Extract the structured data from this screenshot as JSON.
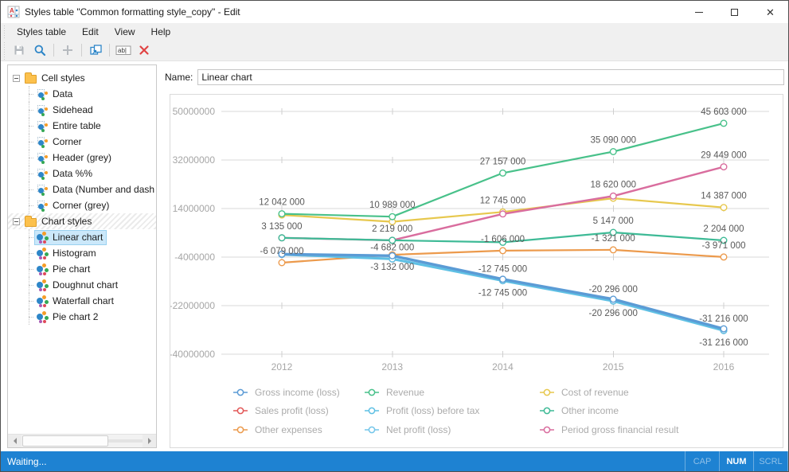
{
  "window": {
    "title": "Styles table \"Common formatting style_copy\" - Edit",
    "controls": [
      {
        "name": "minimize",
        "icon": "minimize-icon"
      },
      {
        "name": "maximize",
        "icon": "maximize-icon"
      },
      {
        "name": "close",
        "icon": "close-icon"
      }
    ]
  },
  "menu": {
    "items": [
      "Styles table",
      "Edit",
      "View",
      "Help"
    ]
  },
  "toolbar": {
    "buttons": [
      {
        "name": "save",
        "icon": "floppy-icon",
        "enabled": false
      },
      {
        "name": "preview",
        "icon": "magnifier-icon",
        "enabled": true
      },
      {
        "name": "add",
        "icon": "plus-icon",
        "enabled": false
      },
      {
        "name": "duplicate",
        "icon": "copy-icon",
        "enabled": true
      },
      {
        "name": "rename",
        "icon": "rename-icon",
        "enabled": true
      },
      {
        "name": "delete",
        "icon": "delete-x-icon",
        "enabled": true
      }
    ],
    "rename_glyph": "ab|"
  },
  "tree": {
    "groups": [
      {
        "label": "Cell styles",
        "icon": "folder-icon",
        "hatched": false,
        "items": [
          {
            "label": "Data",
            "selected": false
          },
          {
            "label": "Sidehead",
            "selected": false
          },
          {
            "label": "Entire table",
            "selected": false
          },
          {
            "label": "Corner",
            "selected": false
          },
          {
            "label": "Header (grey)",
            "selected": false
          },
          {
            "label": "Data %%",
            "selected": false
          },
          {
            "label": "Data (Number and dash",
            "selected": false
          },
          {
            "label": "Corner (grey)",
            "selected": false
          }
        ]
      },
      {
        "label": "Chart styles",
        "icon": "folder-icon",
        "hatched": true,
        "items": [
          {
            "label": "Linear chart",
            "selected": true
          },
          {
            "label": "Histogram",
            "selected": false
          },
          {
            "label": "Pie chart",
            "selected": false
          },
          {
            "label": "Doughnut chart",
            "selected": false
          },
          {
            "label": "Waterfall chart",
            "selected": false
          },
          {
            "label": "Pie chart 2",
            "selected": false
          }
        ]
      }
    ]
  },
  "name_field": {
    "label": "Name:",
    "value": "Linear chart"
  },
  "chart_data": {
    "type": "line",
    "x": [
      2012,
      2013,
      2014,
      2015,
      2016
    ],
    "x_labels": [
      "2012",
      "2013",
      "2014",
      "2015",
      "2016"
    ],
    "y_ticks": [
      50000000,
      32000000,
      14000000,
      -4000000,
      -22000000,
      -40000000
    ],
    "y_tick_labels": [
      "50000000",
      "32000000",
      "14000000",
      "-4000000",
      "-22000000",
      "-40000000"
    ],
    "ylim": [
      -40000000,
      50000000
    ],
    "grid": true,
    "legend_position": "bottom",
    "series": [
      {
        "name": "Sales profit (loss)",
        "color": "#e25757",
        "width": 2.2,
        "values": [
          -3000000,
          -4682000,
          -12745000,
          -20296000,
          -31216000
        ]
      },
      {
        "name": "Cost of revenue",
        "color": "#e7c84e",
        "width": 2.2,
        "values": [
          11600000,
          9100000,
          12745000,
          17800000,
          14387000
        ]
      },
      {
        "name": "Period gross financial result",
        "color": "#d96d9e",
        "width": 2.4,
        "values": [
          3135000,
          2219000,
          12000000,
          18620000,
          29449000
        ]
      },
      {
        "name": "Other income",
        "color": "#3eba96",
        "width": 2.2,
        "values": [
          3135000,
          2219000,
          1500000,
          5147000,
          2204000
        ]
      },
      {
        "name": "Other expenses",
        "color": "#ec9a4c",
        "width": 2.2,
        "values": [
          -6079000,
          -3132000,
          -1606000,
          -1321000,
          -3971000
        ]
      },
      {
        "name": "Revenue",
        "color": "#48c18a",
        "width": 2.2,
        "values": [
          12042000,
          10989000,
          27157000,
          35090000,
          45603000
        ]
      },
      {
        "name": "Net profit (loss)",
        "color": "#74c6ea",
        "width": 2.4,
        "values": [
          -3000000,
          -4682000,
          -12745000,
          -20296000,
          -31216000
        ]
      },
      {
        "name": "Profit (loss) before tax",
        "color": "#5fc0e4",
        "width": 3.2,
        "values": [
          -3000000,
          -4682000,
          -12745000,
          -20296000,
          -31216000
        ]
      },
      {
        "name": "Gross income (loss)",
        "color": "#5b9bd5",
        "width": 3.4,
        "values": [
          -2900000,
          -3500000,
          -12200000,
          -19600000,
          -30600000
        ]
      }
    ],
    "point_labels": [
      {
        "series": "Revenue",
        "xi": 0,
        "text": "12 042 000",
        "pos": "above"
      },
      {
        "series": "Revenue",
        "xi": 1,
        "text": "10 989 000",
        "pos": "above"
      },
      {
        "series": "Revenue",
        "xi": 2,
        "text": "27 157 000",
        "pos": "above"
      },
      {
        "series": "Revenue",
        "xi": 3,
        "text": "35 090 000",
        "pos": "above"
      },
      {
        "series": "Revenue",
        "xi": 4,
        "text": "45 603 000",
        "pos": "above"
      },
      {
        "series": "Cost of revenue",
        "xi": 2,
        "text": "12 745 000",
        "pos": "above"
      },
      {
        "series": "Cost of revenue",
        "xi": 4,
        "text": "14 387 000",
        "pos": "above"
      },
      {
        "series": "Period gross financial result",
        "xi": 3,
        "text": "18 620 000",
        "pos": "above"
      },
      {
        "series": "Period gross financial result",
        "xi": 4,
        "text": "29 449 000",
        "pos": "above"
      },
      {
        "series": "Other income",
        "xi": 0,
        "text": "3 135 000",
        "pos": "above"
      },
      {
        "series": "Other income",
        "xi": 1,
        "text": "2 219 000",
        "pos": "above"
      },
      {
        "series": "Other income",
        "xi": 3,
        "text": "5 147 000",
        "pos": "above"
      },
      {
        "series": "Other income",
        "xi": 4,
        "text": "2 204 000",
        "pos": "above"
      },
      {
        "series": "Other expenses",
        "xi": 0,
        "text": "-6 079 000",
        "pos": "above"
      },
      {
        "series": "Other expenses",
        "xi": 1,
        "text": "-3 132 000",
        "pos": "below"
      },
      {
        "series": "Other expenses",
        "xi": 2,
        "text": "-1 606 000",
        "pos": "above"
      },
      {
        "series": "Other expenses",
        "xi": 3,
        "text": "-1 321 000",
        "pos": "above"
      },
      {
        "series": "Other expenses",
        "xi": 4,
        "text": "-3 971 000",
        "pos": "above"
      },
      {
        "series": "Profit (loss) before tax",
        "xi": 1,
        "text": "-4 682 000",
        "pos": "above"
      },
      {
        "series": "Profit (loss) before tax",
        "xi": 2,
        "text": "-12 745 000",
        "pos": "above"
      },
      {
        "series": "Profit (loss) before tax",
        "xi": 3,
        "text": "-20 296 000",
        "pos": "above"
      },
      {
        "series": "Profit (loss) before tax",
        "xi": 4,
        "text": "-31 216 000",
        "pos": "above"
      },
      {
        "series": "Net profit (loss)",
        "xi": 2,
        "text": "-12 745 000",
        "pos": "below"
      },
      {
        "series": "Net profit (loss)",
        "xi": 3,
        "text": "-20 296 000",
        "pos": "below"
      },
      {
        "series": "Net profit (loss)",
        "xi": 4,
        "text": "-31 216 000",
        "pos": "below"
      }
    ],
    "legend_columns": [
      [
        "Gross income (loss)",
        "Sales profit (loss)",
        "Other expenses"
      ],
      [
        "Revenue",
        "Profit (loss) before tax",
        "Net profit (loss)"
      ],
      [
        "Cost of revenue",
        "Other income",
        "Period gross financial result"
      ]
    ],
    "colors": {
      "grid": "#d9d9d9",
      "axis_text": "#a6a6a6",
      "data_label": "#595959",
      "legend_text": "#ababab"
    }
  },
  "status_bar": {
    "message": "Waiting...",
    "indicators": [
      {
        "label": "CAP",
        "active": false
      },
      {
        "label": "NUM",
        "active": true
      },
      {
        "label": "SCRL",
        "active": false
      }
    ]
  },
  "accent_colors": {
    "statusbar": "#1e82d2",
    "selection": "#cbe8fa",
    "toolbar_blue": "#2e86c8",
    "delete_red": "#e04343"
  }
}
